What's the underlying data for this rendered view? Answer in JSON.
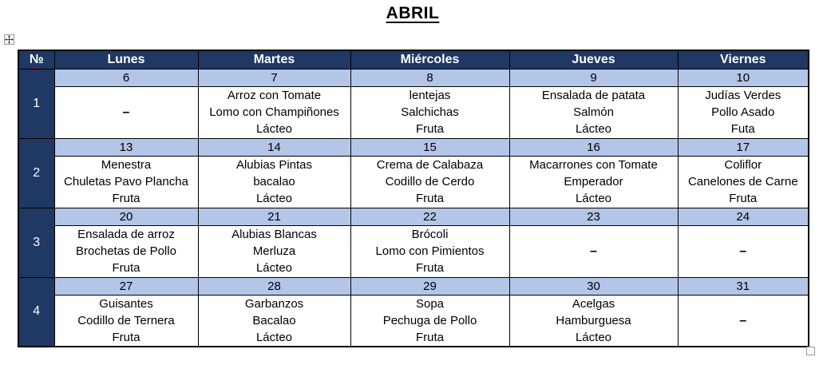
{
  "page": {
    "title": "ABRIL"
  },
  "colors": {
    "header_bg": "#1F3864",
    "week_number_bg": "#1F3864",
    "date_row_bg": "#B4C6E7",
    "border": "#000000",
    "header_text": "#FFFFFF",
    "spellcheck_underline": "#C00000"
  },
  "icons": {
    "move_handle": "table-move-handle-icon",
    "resize_handle": "table-resize-handle"
  },
  "table": {
    "headers": [
      "№",
      "Lunes",
      "Martes",
      "Miércoles",
      "Jueves",
      "Viernes"
    ],
    "weeks": [
      {
        "num": "1",
        "days": [
          {
            "date": "6",
            "lines": [
              "–"
            ]
          },
          {
            "date": "7",
            "lines": [
              "Arroz con Tomate",
              "Lomo con Champiñones",
              "Lácteo"
            ]
          },
          {
            "date": "8",
            "lines": [
              "lentejas",
              "Salchichas",
              "Fruta"
            ]
          },
          {
            "date": "9",
            "lines": [
              "Ensalada de patata",
              "Salmón",
              "Lácteo"
            ]
          },
          {
            "date": "10",
            "lines": [
              "Judías Verdes",
              "Pollo Asado",
              "Futa"
            ]
          }
        ]
      },
      {
        "num": "2",
        "days": [
          {
            "date": "13",
            "lines": [
              "Menestra",
              "Chuletas Pavo Plancha",
              "Fruta"
            ]
          },
          {
            "date": "14",
            "lines": [
              "Alubias Pintas",
              "bacalao",
              "Lácteo"
            ]
          },
          {
            "date": "15",
            "lines": [
              "Crema de Calabaza",
              "Codillo de Cerdo",
              "Fruta"
            ]
          },
          {
            "date": "16",
            "lines": [
              "Macarrones con Tomate",
              "Emperador",
              "Lácteo"
            ]
          },
          {
            "date": "17",
            "lines": [
              "Coliflor",
              "Canelones de Carne",
              "Fruta"
            ]
          }
        ]
      },
      {
        "num": "3",
        "days": [
          {
            "date": "20",
            "lines": [
              "Ensalada de arroz",
              "Brochetas de Pollo",
              "Fruta"
            ]
          },
          {
            "date": "21",
            "lines": [
              "Alubias Blancas",
              "Merluza",
              "Lácteo"
            ]
          },
          {
            "date": "22",
            "lines": [
              "Brócoli",
              "Lomo con Pimientos",
              "Fruta"
            ]
          },
          {
            "date": "23",
            "lines": [
              "–"
            ]
          },
          {
            "date": "24",
            "lines": [
              "–"
            ]
          }
        ]
      },
      {
        "num": "4",
        "days": [
          {
            "date": "27",
            "lines": [
              "Guisantes",
              "Codillo de Ternera",
              "Fruta"
            ]
          },
          {
            "date": "28",
            "lines": [
              "Garbanzos",
              "Bacalao",
              "Lácteo"
            ]
          },
          {
            "date": "29",
            "lines": [
              "Sopa",
              "Pechuga de Pollo",
              "Fruta"
            ]
          },
          {
            "date": "30",
            "lines": [
              "Acelgas",
              "Hamburguesa",
              "Lácteo"
            ]
          },
          {
            "date": "31",
            "lines": [
              "–"
            ]
          }
        ]
      }
    ]
  }
}
